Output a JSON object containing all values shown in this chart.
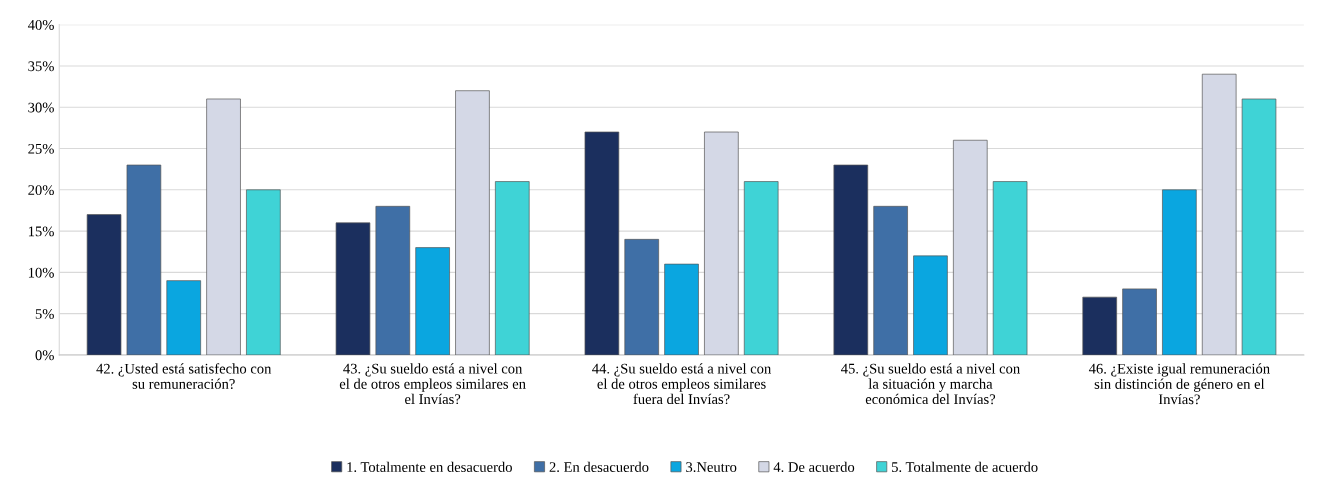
{
  "chart_data": {
    "type": "bar",
    "categories": [
      "42. ¿Usted está satisfecho con\nsu remuneración?",
      "43. ¿Su sueldo está a nivel con\nel de otros empleos similares en\nel Invías?",
      "44. ¿Su sueldo está a nivel con\nel de otros empleos similares\nfuera del Invías?",
      "45. ¿Su sueldo está a nivel con\nla situación y marcha\neconómica del Invías?",
      "46. ¿Existe igual remuneración\nsin distinción de género en el\nInvías?"
    ],
    "series": [
      {
        "name": "1. Totalmente en desacuerdo",
        "color": "#1b2f5e",
        "values": [
          17,
          16,
          27,
          23,
          7
        ]
      },
      {
        "name": "2. En desacuerdo",
        "color": "#3f6fa6",
        "values": [
          23,
          18,
          14,
          18,
          8
        ]
      },
      {
        "name": "3.Neutro",
        "color": "#0aa6e0",
        "values": [
          9,
          13,
          11,
          12,
          20
        ]
      },
      {
        "name": "4. De acuerdo",
        "color": "#d4d8e6",
        "values": [
          31,
          32,
          27,
          26,
          34
        ]
      },
      {
        "name": "5. Totalmente de acuerdo",
        "color": "#3fd3d6",
        "values": [
          20,
          21,
          21,
          21,
          31
        ]
      }
    ],
    "ylim": [
      0,
      40
    ],
    "yticks": [
      {
        "value": 0,
        "label": "0%"
      },
      {
        "value": 5,
        "label": "5%"
      },
      {
        "value": 10,
        "label": "10%"
      },
      {
        "value": 15,
        "label": "15%"
      },
      {
        "value": 20,
        "label": "20%"
      },
      {
        "value": 25,
        "label": "25%"
      },
      {
        "value": 30,
        "label": "30%"
      },
      {
        "value": 35,
        "label": "35%"
      },
      {
        "value": 40,
        "label": "40%"
      }
    ],
    "grid": "y",
    "legend": "bottom"
  }
}
